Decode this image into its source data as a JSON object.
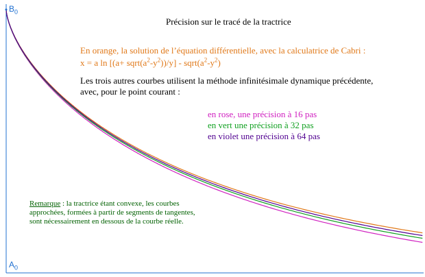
{
  "title": "Précision sur le tracé de la tractrice",
  "points": {
    "b": "B",
    "b_sub": "0",
    "a": "A",
    "a_sub": "0"
  },
  "orange_line1": "En orange, la solution de l’équation différentielle, avec la calculatrice de Cabri :",
  "formula": {
    "p1": "x = a ln [(a+ sqrt(a",
    "s1": "2",
    "p2": "-y",
    "s2": "2",
    "p3": "))/y] - sqrt(a",
    "s3": "2",
    "p4": "-y",
    "s4": "2",
    "p5": ")"
  },
  "black_line1": "Les trois autres courbes utilisent la méthode infinitésimale dynamique précédente,",
  "black_line2": "avec, pour le point courant :",
  "pink_line": "en rose, une précision à 16 pas",
  "green_line": "en vert une précision à 32 pas",
  "violet_line": "en violet une précision à 64 pas",
  "remark": {
    "label": "Remarque",
    "line1": " : la tractrice étant convexe, les courbes",
    "line2": "approchées, formées à partir de segments de tangentes,",
    "line3": "sont nécessairement en dessous de la courbe réelle."
  },
  "colors": {
    "axis": "#2070d0",
    "orange": "#e07818",
    "pink": "#d020c0",
    "green": "#10a020",
    "violet": "#500090",
    "remark": "#006000"
  }
}
